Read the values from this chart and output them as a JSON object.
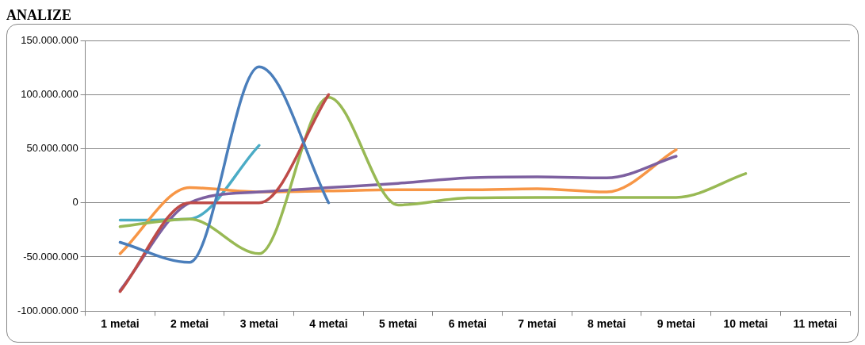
{
  "chart_data": {
    "type": "line",
    "title": "ANALIZE",
    "categories": [
      "1 metai",
      "2 metai",
      "3 metai",
      "4 metai",
      "5 metai",
      "6 metai",
      "7 metai",
      "8 metai",
      "9 metai",
      "10 metai",
      "11 metai"
    ],
    "series": [
      {
        "color": "#4a7ebb",
        "values": [
          -36500000,
          -55000000,
          125600000,
          0,
          null,
          null,
          null,
          null,
          null,
          null,
          null
        ]
      },
      {
        "color": "#be4b48",
        "values": [
          -82000000,
          0,
          0,
          100000000,
          null,
          null,
          null,
          null,
          null,
          null,
          null
        ]
      },
      {
        "color": "#98b954",
        "values": [
          -22000000,
          -15000000,
          -47000000,
          97500000,
          -2000000,
          4500000,
          5000000,
          5000000,
          5000000,
          27000000,
          null
        ]
      },
      {
        "color": "#7d60a0",
        "values": [
          -81000000,
          0,
          10000000,
          14000000,
          18000000,
          23000000,
          24000000,
          23000000,
          43000000,
          null,
          null
        ]
      },
      {
        "color": "#f79646",
        "values": [
          -47000000,
          14000000,
          10000000,
          11000000,
          12000000,
          12000000,
          13000000,
          10000000,
          49000000,
          null,
          null
        ]
      },
      {
        "color": "#4bacc6",
        "values": [
          -16000000,
          -15000000,
          53000000,
          null,
          null,
          null,
          null,
          null,
          null,
          null,
          null
        ]
      }
    ],
    "ylim": [
      -100000000,
      150000000
    ],
    "yticks": [
      {
        "value": -100000000,
        "label": "-100.000.000"
      },
      {
        "value": -50000000,
        "label": "-50.000.000"
      },
      0,
      {
        "value": 50000000,
        "label": "50.000.000"
      },
      {
        "value": 100000000,
        "label": "100.000.000"
      },
      {
        "value": 150000000,
        "label": "150.000.000"
      }
    ],
    "grid": "y",
    "legend": false,
    "marker": "none",
    "line_style": "solid"
  }
}
